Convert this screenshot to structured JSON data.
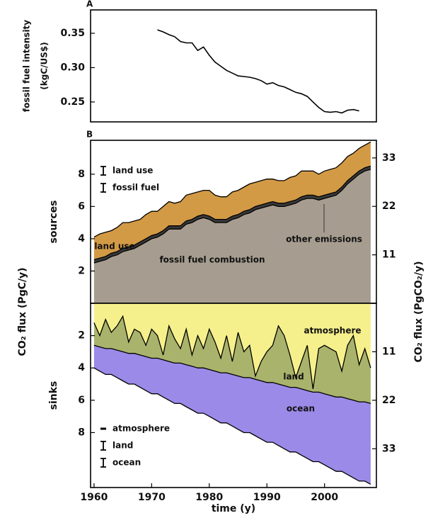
{
  "figure": {
    "ylabel": "CO₂ flux (PgC/y)",
    "y2label": "CO₂ flux (PgCO₂/y)",
    "xlabel": "time (y)"
  },
  "chart_data": [
    {
      "type": "line",
      "panel_label": "A",
      "ylabel": [
        "fossil fuel intensity",
        "(kgC/US$)"
      ],
      "color": "#000000",
      "x": [
        1971,
        1972,
        1973,
        1974,
        1975,
        1976,
        1977,
        1978,
        1979,
        1980,
        1981,
        1982,
        1983,
        1984,
        1985,
        1986,
        1987,
        1988,
        1989,
        1990,
        1991,
        1992,
        1993,
        1994,
        1995,
        1996,
        1997,
        1998,
        1999,
        2000,
        2001,
        2002,
        2003,
        2004,
        2005,
        2006
      ],
      "values": [
        0.355,
        0.352,
        0.348,
        0.345,
        0.338,
        0.336,
        0.336,
        0.325,
        0.33,
        0.318,
        0.308,
        0.302,
        0.296,
        0.292,
        0.288,
        0.287,
        0.286,
        0.284,
        0.281,
        0.276,
        0.278,
        0.274,
        0.272,
        0.268,
        0.264,
        0.262,
        0.258,
        0.25,
        0.242,
        0.236,
        0.235,
        0.236,
        0.234,
        0.238,
        0.239,
        0.237
      ],
      "xlim": [
        1959.4,
        2009
      ],
      "ylim": [
        0.221,
        0.384
      ],
      "yticks": [
        0.35,
        {
          "value": 0.3,
          "label": "0.30"
        },
        0.25
      ]
    },
    {
      "type": "stacked-area",
      "panel_label": "B",
      "ylabel": "sources",
      "x": [
        1960,
        1961,
        1962,
        1963,
        1964,
        1965,
        1966,
        1967,
        1968,
        1969,
        1970,
        1971,
        1972,
        1973,
        1974,
        1975,
        1976,
        1977,
        1978,
        1979,
        1980,
        1981,
        1982,
        1983,
        1984,
        1985,
        1986,
        1987,
        1988,
        1989,
        1990,
        1991,
        1992,
        1993,
        1994,
        1995,
        1996,
        1997,
        1998,
        1999,
        2000,
        2001,
        2002,
        2003,
        2004,
        2005,
        2006,
        2007,
        2008
      ],
      "series": [
        {
          "name": "fossil fuel combustion",
          "color": "#a69d90",
          "values": [
            2.5,
            2.6,
            2.7,
            2.9,
            3.0,
            3.2,
            3.3,
            3.4,
            3.6,
            3.8,
            4.0,
            4.1,
            4.3,
            4.6,
            4.6,
            4.6,
            4.9,
            5.0,
            5.2,
            5.3,
            5.2,
            5.0,
            5.0,
            5.0,
            5.2,
            5.3,
            5.5,
            5.6,
            5.8,
            5.9,
            6.0,
            6.1,
            6.0,
            6.0,
            6.1,
            6.2,
            6.4,
            6.5,
            6.5,
            6.4,
            6.5,
            6.6,
            6.7,
            7.0,
            7.4,
            7.7,
            8.0,
            8.2,
            8.3
          ]
        },
        {
          "name": "other emissions",
          "color": "#3a3a3a",
          "values": [
            0.2,
            0.2,
            0.2,
            0.2,
            0.2,
            0.2,
            0.2,
            0.2,
            0.2,
            0.2,
            0.2,
            0.2,
            0.2,
            0.2,
            0.2,
            0.2,
            0.2,
            0.2,
            0.2,
            0.2,
            0.2,
            0.2,
            0.2,
            0.2,
            0.2,
            0.2,
            0.2,
            0.2,
            0.2,
            0.2,
            0.2,
            0.2,
            0.2,
            0.2,
            0.2,
            0.2,
            0.2,
            0.2,
            0.2,
            0.2,
            0.2,
            0.2,
            0.2,
            0.2,
            0.2,
            0.2,
            0.2,
            0.2,
            0.2
          ]
        },
        {
          "name": "land use",
          "color": "#d39a45",
          "values": [
            1.4,
            1.5,
            1.5,
            1.4,
            1.5,
            1.6,
            1.5,
            1.5,
            1.4,
            1.5,
            1.5,
            1.4,
            1.5,
            1.5,
            1.4,
            1.5,
            1.6,
            1.6,
            1.5,
            1.5,
            1.6,
            1.5,
            1.4,
            1.4,
            1.5,
            1.5,
            1.5,
            1.6,
            1.5,
            1.5,
            1.5,
            1.4,
            1.4,
            1.4,
            1.5,
            1.5,
            1.6,
            1.5,
            1.5,
            1.4,
            1.5,
            1.5,
            1.5,
            1.5,
            1.5,
            1.4,
            1.4,
            1.4,
            1.5
          ]
        }
      ],
      "legend": [
        {
          "label": "land use",
          "symbol": "errorbar"
        },
        {
          "label": "fossil fuel",
          "symbol": "errorbar"
        }
      ],
      "xlim": [
        1959.4,
        2009
      ],
      "ylim": [
        0,
        10.1
      ],
      "yticks": [
        2,
        4,
        6,
        8
      ],
      "y2lim": [
        0,
        37.0
      ],
      "y2ticks": [
        11,
        22,
        33
      ]
    },
    {
      "type": "stacked-area",
      "ylabel": "sinks",
      "x": [
        1960,
        1961,
        1962,
        1963,
        1964,
        1965,
        1966,
        1967,
        1968,
        1969,
        1970,
        1971,
        1972,
        1973,
        1974,
        1975,
        1976,
        1977,
        1978,
        1979,
        1980,
        1981,
        1982,
        1983,
        1984,
        1985,
        1986,
        1987,
        1988,
        1989,
        1990,
        1991,
        1992,
        1993,
        1994,
        1995,
        1996,
        1997,
        1998,
        1999,
        2000,
        2001,
        2002,
        2003,
        2004,
        2005,
        2006,
        2007,
        2008
      ],
      "series": [
        {
          "name": "atmosphere",
          "color": "#f6f08c",
          "values": [
            1.2,
            2.0,
            1.0,
            1.8,
            1.4,
            0.8,
            2.4,
            1.6,
            1.8,
            2.6,
            1.6,
            2.0,
            3.2,
            1.4,
            2.2,
            2.8,
            1.6,
            3.2,
            2.0,
            2.8,
            1.6,
            2.4,
            3.4,
            2.0,
            3.6,
            1.8,
            3.0,
            2.6,
            4.5,
            3.6,
            3.0,
            2.6,
            1.4,
            2.0,
            3.2,
            4.6,
            3.6,
            2.6,
            5.3,
            2.8,
            2.6,
            2.8,
            3.0,
            4.2,
            2.6,
            2.0,
            3.8,
            2.8,
            4.0
          ]
        },
        {
          "name": "land",
          "color": "#a9b36c",
          "values": [
            1.4,
            0.7,
            1.8,
            1.0,
            1.5,
            2.2,
            0.7,
            1.5,
            1.4,
            0.7,
            1.8,
            1.4,
            0.3,
            2.2,
            1.5,
            0.9,
            2.2,
            0.7,
            2.0,
            1.2,
            2.5,
            1.8,
            0.9,
            2.3,
            0.8,
            2.7,
            1.6,
            2.0,
            0.2,
            1.2,
            1.9,
            2.3,
            3.6,
            3.1,
            2.0,
            0.6,
            1.7,
            2.8,
            0.2,
            2.7,
            3.0,
            2.9,
            2.8,
            1.6,
            3.3,
            4.0,
            2.3,
            3.3,
            2.2
          ]
        },
        {
          "name": "ocean",
          "color": "#9b8ae8",
          "values": [
            1.4,
            1.5,
            1.6,
            1.6,
            1.7,
            1.8,
            1.9,
            1.9,
            2.0,
            2.1,
            2.2,
            2.2,
            2.3,
            2.4,
            2.5,
            2.5,
            2.6,
            2.7,
            2.8,
            2.8,
            2.9,
            3.0,
            3.1,
            3.1,
            3.2,
            3.3,
            3.4,
            3.4,
            3.5,
            3.6,
            3.7,
            3.7,
            3.8,
            3.9,
            4.0,
            4.0,
            4.1,
            4.2,
            4.3,
            4.3,
            4.4,
            4.5,
            4.6,
            4.6,
            4.7,
            4.8,
            4.9,
            4.9,
            5.0
          ]
        }
      ],
      "legend": [
        {
          "label": "atmosphere",
          "symbol": "dash"
        },
        {
          "label": "land",
          "symbol": "errorbar"
        },
        {
          "label": "ocean",
          "symbol": "errorbar"
        }
      ],
      "xlim": [
        1959.4,
        2009
      ],
      "ylim": [
        11.4,
        0
      ],
      "yticks": [
        2,
        4,
        6,
        8
      ],
      "y2lim": [
        41.8,
        0
      ],
      "y2ticks": [
        11,
        22,
        33
      ],
      "xticks": [
        1960,
        1970,
        1980,
        1990,
        2000
      ]
    }
  ]
}
